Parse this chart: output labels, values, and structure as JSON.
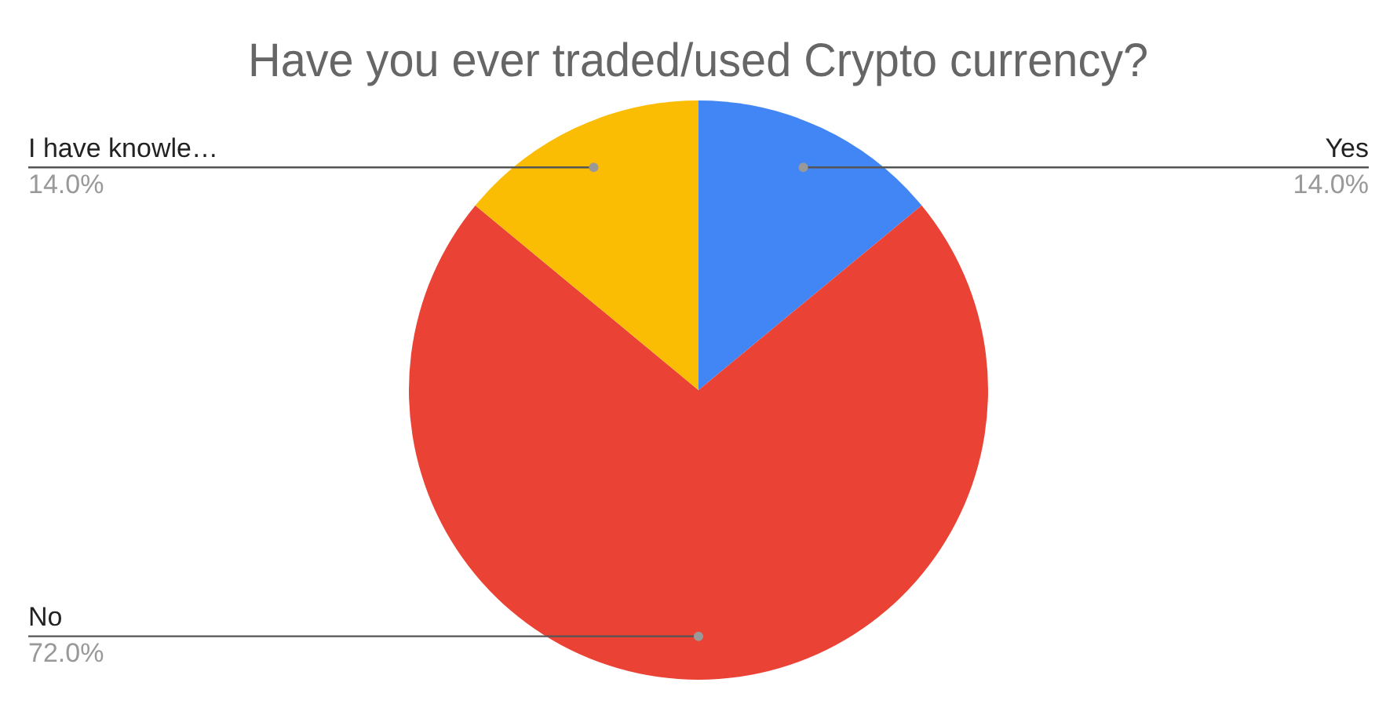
{
  "chart_data": {
    "type": "pie",
    "title": "Have you ever traded/used Crypto currency?",
    "categories": [
      "Yes",
      "No",
      "I have knowle…"
    ],
    "values": [
      14,
      72,
      14
    ],
    "colors": [
      "#4285f4",
      "#ea4335",
      "#fbbc04"
    ],
    "value_labels": [
      "14.0%",
      "72.0%",
      "14.0%"
    ],
    "legend": false
  }
}
